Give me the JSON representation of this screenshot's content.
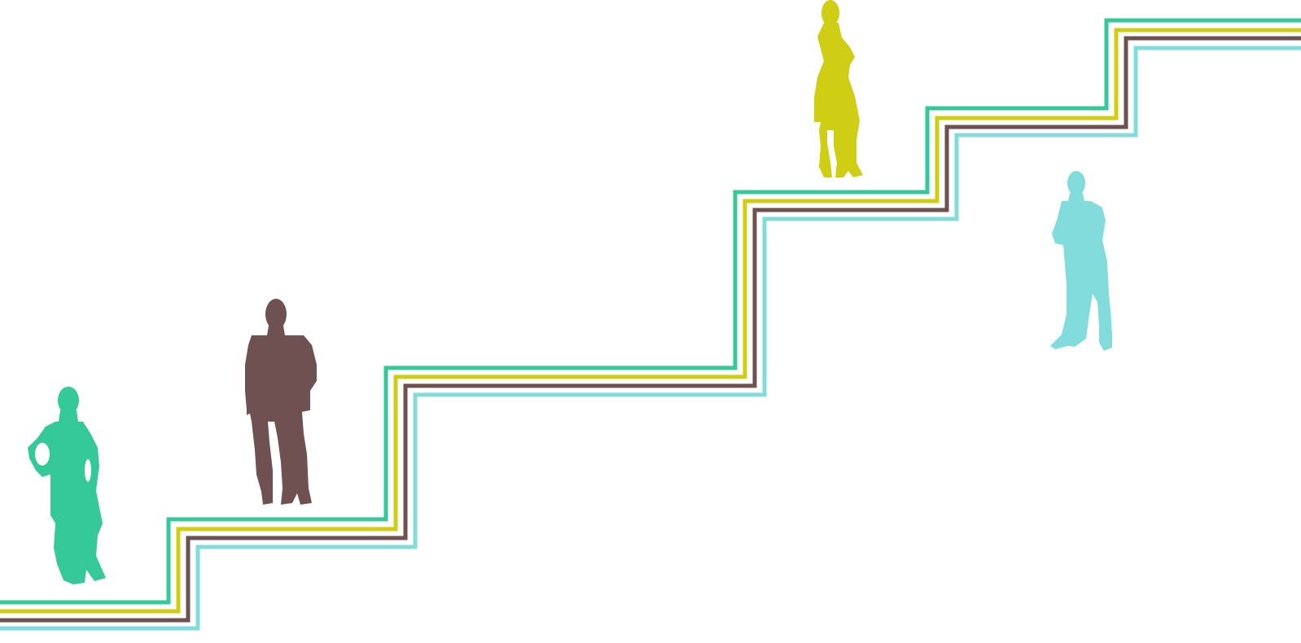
{
  "scene": {
    "background": "#ffffff",
    "stair_lines": [
      {
        "name": "stair-line-green",
        "color": "#35c99a"
      },
      {
        "name": "stair-line-yellow",
        "color": "#cfcd14"
      },
      {
        "name": "stair-line-brown",
        "color": "#6f5152"
      },
      {
        "name": "stair-line-cyan",
        "color": "#82dcdc"
      }
    ],
    "figures": [
      {
        "name": "woman-figure-green",
        "icon": "woman-silhouette-icon",
        "color": "#35c99a"
      },
      {
        "name": "man-figure-brown",
        "icon": "man-silhouette-icon",
        "color": "#6f5152"
      },
      {
        "name": "woman-figure-yellow",
        "icon": "woman-silhouette-icon",
        "color": "#cfcd14"
      },
      {
        "name": "man-figure-cyan",
        "icon": "man-silhouette-icon",
        "color": "#82dcdc"
      }
    ]
  }
}
